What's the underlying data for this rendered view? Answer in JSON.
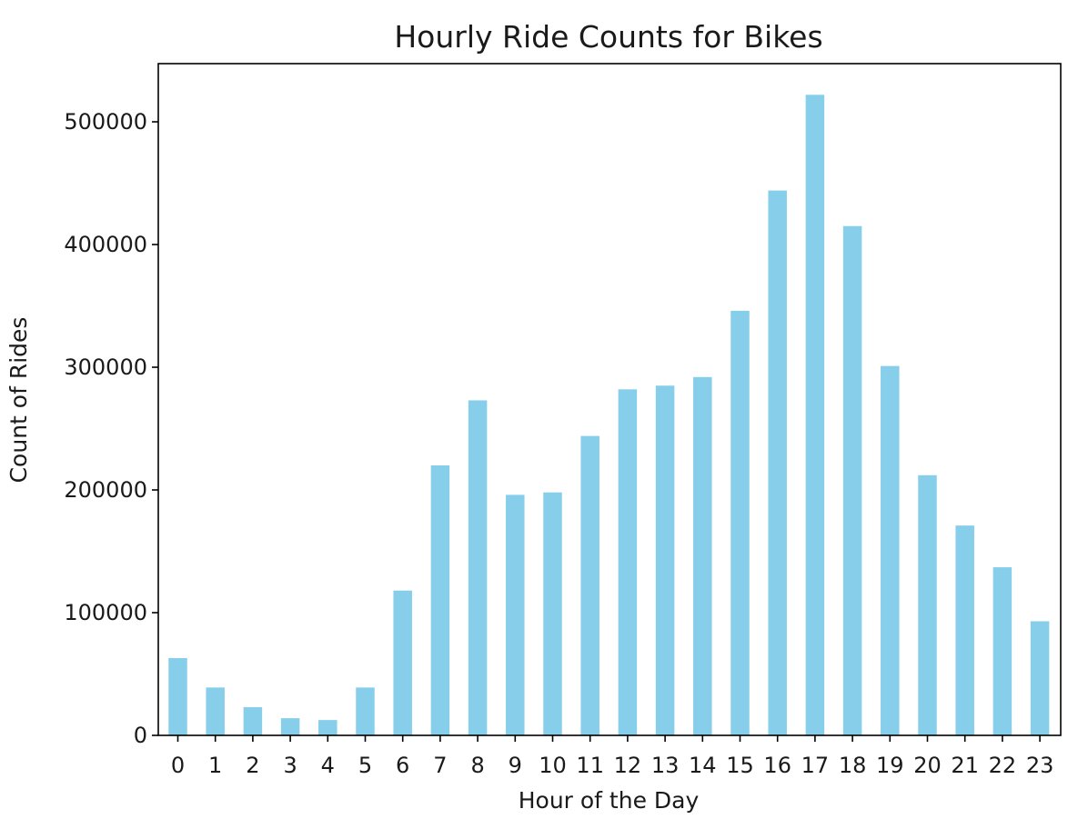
{
  "chart_data": {
    "type": "bar",
    "title": "Hourly Ride Counts for Bikes",
    "xlabel": "Hour of the Day",
    "ylabel": "Count of Rides",
    "categories": [
      "0",
      "1",
      "2",
      "3",
      "4",
      "5",
      "6",
      "7",
      "8",
      "9",
      "10",
      "11",
      "12",
      "13",
      "14",
      "15",
      "16",
      "17",
      "18",
      "19",
      "20",
      "21",
      "22",
      "23"
    ],
    "values": [
      63000,
      39000,
      23000,
      14000,
      12500,
      39000,
      118000,
      220000,
      273000,
      196000,
      198000,
      244000,
      282000,
      285000,
      292000,
      346000,
      444000,
      522000,
      415000,
      301000,
      212000,
      171000,
      137000,
      93000
    ],
    "ylim": [
      0,
      550000
    ],
    "yticks": [
      0,
      100000,
      200000,
      300000,
      400000,
      500000
    ],
    "bar_color": "#87ceeb",
    "grid": false,
    "legend": "none"
  }
}
